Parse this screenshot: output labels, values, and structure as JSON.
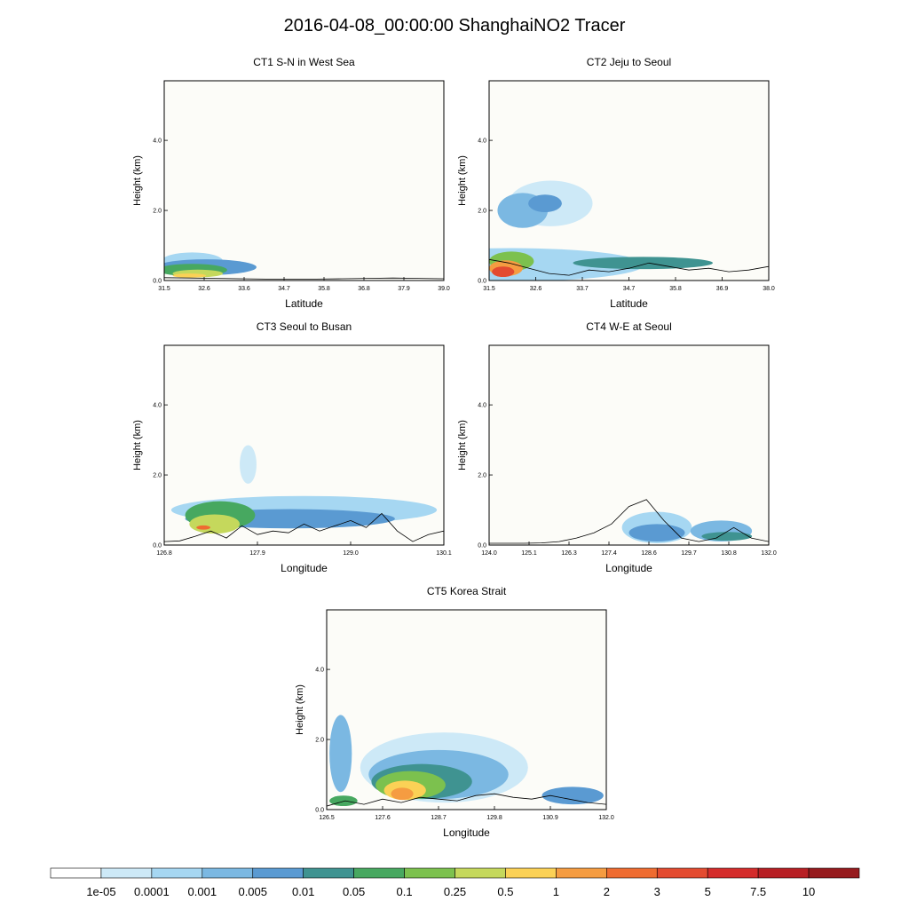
{
  "title": "2016-04-08_00:00:00 ShanghaiNO2 Tracer",
  "chart_data": [
    {
      "type": "contour",
      "title": "CT1 S-N in West Sea",
      "xlabel": "Latitude",
      "ylabel": "Height (km)",
      "xticks": [
        "31.5",
        "32.6",
        "33.6",
        "34.7",
        "35.8",
        "36.8",
        "37.9",
        "39.0"
      ],
      "yticks": [
        "0.0",
        "2.0",
        "4.0"
      ],
      "ylim": [
        0,
        5.7
      ],
      "terrain": [
        0.08,
        0.07,
        0.06,
        0.05,
        0.04,
        0.04,
        0.04,
        0.05,
        0.06,
        0.07,
        0.06,
        0.05
      ],
      "blobs": [
        {
          "x": 0.1,
          "y": 0.55,
          "w": 0.22,
          "h": 0.5,
          "level": 2
        },
        {
          "x": 0.15,
          "y": 0.38,
          "w": 0.36,
          "h": 0.45,
          "level": 4
        },
        {
          "x": 0.1,
          "y": 0.3,
          "w": 0.25,
          "h": 0.35,
          "level": 6
        },
        {
          "x": 0.12,
          "y": 0.2,
          "w": 0.18,
          "h": 0.22,
          "level": 8
        },
        {
          "x": 0.09,
          "y": 0.14,
          "w": 0.12,
          "h": 0.12,
          "level": 9
        }
      ]
    },
    {
      "type": "contour",
      "title": "CT2 Jeju to Seoul",
      "xlabel": "Latitude",
      "ylabel": "Height (km)",
      "xticks": [
        "31.5",
        "32.6",
        "33.7",
        "34.7",
        "35.8",
        "36.9",
        "38.0"
      ],
      "yticks": [
        "0.0",
        "2.0",
        "4.0"
      ],
      "ylim": [
        0,
        5.7
      ],
      "terrain": [
        0.6,
        0.5,
        0.35,
        0.2,
        0.15,
        0.3,
        0.25,
        0.35,
        0.5,
        0.4,
        0.3,
        0.35,
        0.25,
        0.3,
        0.4
      ],
      "blobs": [
        {
          "x": 0.08,
          "y": 0.45,
          "w": 0.95,
          "h": 0.95,
          "level": 2
        },
        {
          "x": 0.22,
          "y": 2.2,
          "w": 0.3,
          "h": 1.3,
          "level": 1
        },
        {
          "x": 0.12,
          "y": 2.0,
          "w": 0.18,
          "h": 1.0,
          "level": 3
        },
        {
          "x": 0.2,
          "y": 2.2,
          "w": 0.12,
          "h": 0.5,
          "level": 4
        },
        {
          "x": 0.55,
          "y": 0.5,
          "w": 0.5,
          "h": 0.35,
          "level": 5
        },
        {
          "x": 0.08,
          "y": 0.55,
          "w": 0.16,
          "h": 0.55,
          "level": 7
        },
        {
          "x": 0.06,
          "y": 0.35,
          "w": 0.12,
          "h": 0.45,
          "level": 10
        },
        {
          "x": 0.05,
          "y": 0.25,
          "w": 0.08,
          "h": 0.3,
          "level": 12
        }
      ]
    },
    {
      "type": "contour",
      "title": "CT3 Seoul to Busan",
      "xlabel": "Longitude",
      "ylabel": "Height (km)",
      "xticks": [
        "126.8",
        "127.9",
        "129.0",
        "130.1"
      ],
      "yticks": [
        "0.0",
        "2.0",
        "4.0"
      ],
      "ylim": [
        0,
        5.7
      ],
      "terrain": [
        0.1,
        0.12,
        0.25,
        0.4,
        0.2,
        0.55,
        0.3,
        0.4,
        0.35,
        0.6,
        0.4,
        0.55,
        0.7,
        0.5,
        0.9,
        0.4,
        0.1,
        0.3,
        0.4
      ],
      "blobs": [
        {
          "x": 0.5,
          "y": 1.0,
          "w": 0.95,
          "h": 0.8,
          "level": 2
        },
        {
          "x": 0.3,
          "y": 2.3,
          "w": 0.06,
          "h": 1.1,
          "level": 1
        },
        {
          "x": 0.45,
          "y": 0.75,
          "w": 0.75,
          "h": 0.55,
          "level": 4
        },
        {
          "x": 0.2,
          "y": 0.85,
          "w": 0.25,
          "h": 0.8,
          "level": 6
        },
        {
          "x": 0.18,
          "y": 0.6,
          "w": 0.18,
          "h": 0.55,
          "level": 8
        },
        {
          "x": 0.14,
          "y": 0.5,
          "w": 0.05,
          "h": 0.12,
          "level": 11
        }
      ]
    },
    {
      "type": "contour",
      "title": "CT4 W-E at Seoul",
      "xlabel": "Longitude",
      "ylabel": "Height (km)",
      "xticks": [
        "124.0",
        "125.1",
        "126.3",
        "127.4",
        "128.6",
        "129.7",
        "130.8",
        "132.0"
      ],
      "yticks": [
        "0.0",
        "2.0",
        "4.0"
      ],
      "ylim": [
        0,
        5.7
      ],
      "terrain": [
        0.05,
        0.05,
        0.05,
        0.06,
        0.1,
        0.2,
        0.35,
        0.6,
        1.1,
        1.3,
        0.7,
        0.2,
        0.1,
        0.2,
        0.5,
        0.2,
        0.1
      ],
      "blobs": [
        {
          "x": 0.6,
          "y": 0.5,
          "w": 0.25,
          "h": 0.9,
          "level": 2
        },
        {
          "x": 0.83,
          "y": 0.4,
          "w": 0.22,
          "h": 0.6,
          "level": 3
        },
        {
          "x": 0.6,
          "y": 0.35,
          "w": 0.2,
          "h": 0.5,
          "level": 4
        },
        {
          "x": 0.85,
          "y": 0.25,
          "w": 0.18,
          "h": 0.25,
          "level": 5
        }
      ]
    },
    {
      "type": "contour",
      "title": "CT5 Korea Strait",
      "xlabel": "Longitude",
      "ylabel": "Height (km)",
      "xticks": [
        "126.5",
        "127.6",
        "128.7",
        "129.8",
        "130.9",
        "132.0"
      ],
      "yticks": [
        "0.0",
        "2.0",
        "4.0"
      ],
      "ylim": [
        0,
        5.7
      ],
      "terrain": [
        0.1,
        0.25,
        0.15,
        0.3,
        0.2,
        0.35,
        0.3,
        0.25,
        0.4,
        0.45,
        0.35,
        0.3,
        0.4,
        0.3,
        0.2,
        0.15
      ],
      "blobs": [
        {
          "x": 0.42,
          "y": 1.2,
          "w": 0.6,
          "h": 2.0,
          "level": 1
        },
        {
          "x": 0.05,
          "y": 1.6,
          "w": 0.08,
          "h": 2.2,
          "level": 3
        },
        {
          "x": 0.4,
          "y": 1.0,
          "w": 0.5,
          "h": 1.4,
          "level": 3
        },
        {
          "x": 0.88,
          "y": 0.4,
          "w": 0.22,
          "h": 0.5,
          "level": 4
        },
        {
          "x": 0.34,
          "y": 0.8,
          "w": 0.36,
          "h": 1.0,
          "level": 5
        },
        {
          "x": 0.3,
          "y": 0.7,
          "w": 0.25,
          "h": 0.8,
          "level": 7
        },
        {
          "x": 0.28,
          "y": 0.55,
          "w": 0.15,
          "h": 0.55,
          "level": 9
        },
        {
          "x": 0.27,
          "y": 0.45,
          "w": 0.08,
          "h": 0.35,
          "level": 10
        },
        {
          "x": 0.06,
          "y": 0.25,
          "w": 0.1,
          "h": 0.3,
          "level": 6
        }
      ]
    }
  ],
  "colorbar": {
    "colors": [
      "#ffffff",
      "#cde9f7",
      "#a6d7f2",
      "#7bb8e2",
      "#5a9ad2",
      "#3f9391",
      "#47a860",
      "#7cc14e",
      "#c5d85c",
      "#fbd156",
      "#f59c41",
      "#ef6c31",
      "#e34b30",
      "#d42c2b",
      "#b71f24",
      "#961b1e"
    ],
    "labels": [
      "1e-05",
      "0.0001",
      "0.001",
      "0.005",
      "0.01",
      "0.05",
      "0.1",
      "0.25",
      "0.5",
      "1",
      "2",
      "3",
      "5",
      "7.5",
      "10"
    ]
  }
}
